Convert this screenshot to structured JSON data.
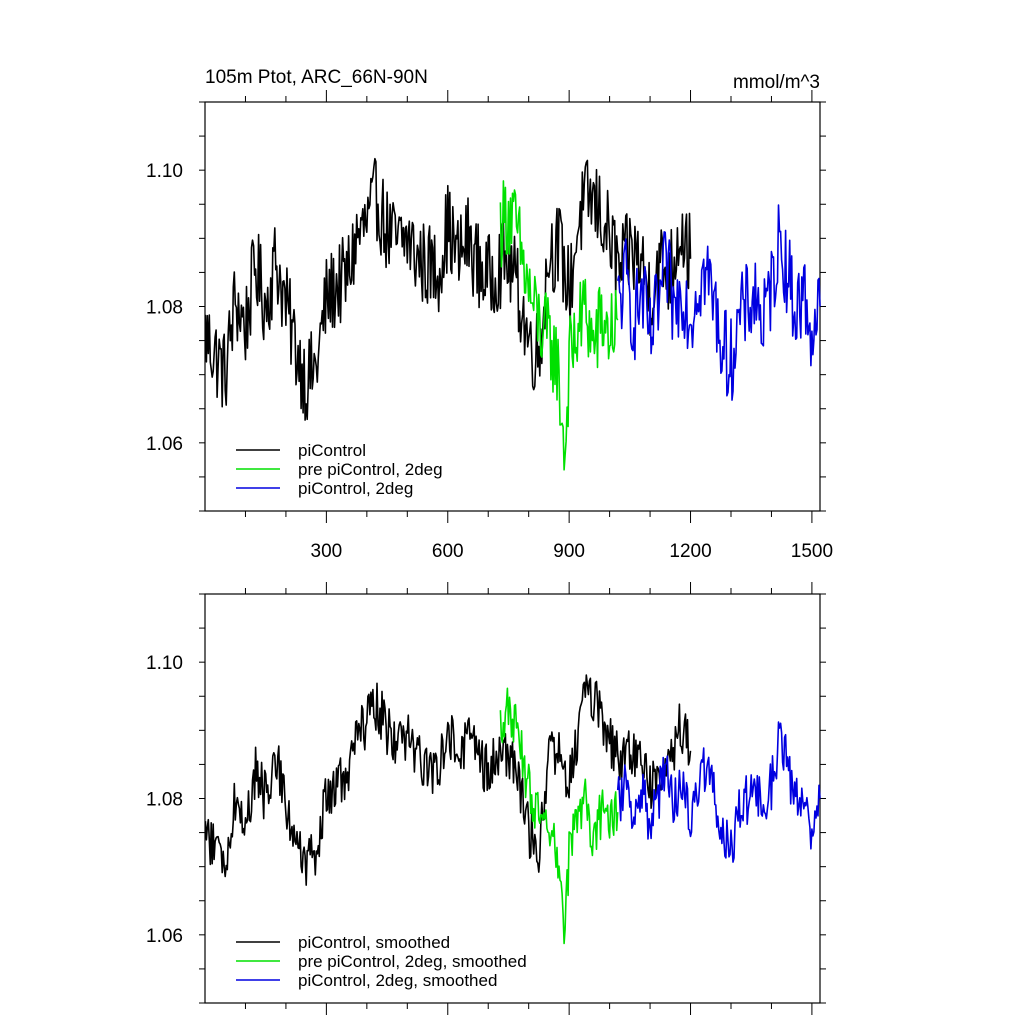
{
  "chart_data": [
    {
      "type": "line",
      "title": "105m Ptot, ARC_66N-90N",
      "units": "mmol/m^3",
      "xlim": [
        0,
        1520
      ],
      "ylim": [
        1.05,
        1.11
      ],
      "x_ticks": [
        300,
        600,
        900,
        1200,
        1500
      ],
      "x_tick_labels": [
        "300",
        "600",
        "900",
        "1200",
        "1500"
      ],
      "y_ticks": [
        1.06,
        1.08,
        1.1
      ],
      "y_tick_labels": [
        "1.06",
        "1.08",
        "1.10"
      ],
      "legend_position": "bottom-left",
      "series": [
        {
          "name": "piControl",
          "color": "#000000",
          "x": [
            1,
            25,
            50,
            75,
            100,
            125,
            150,
            175,
            200,
            225,
            250,
            275,
            300,
            325,
            350,
            375,
            400,
            425,
            450,
            475,
            500,
            525,
            550,
            575,
            600,
            625,
            650,
            675,
            700,
            725,
            750,
            775,
            800,
            825,
            850,
            875,
            900,
            925,
            950,
            975,
            1000,
            1025,
            1050,
            1075,
            1100,
            1125,
            1150,
            1175,
            1200
          ],
          "y": [
            1.076,
            1.073,
            1.07,
            1.081,
            1.077,
            1.086,
            1.08,
            1.087,
            1.08,
            1.074,
            1.069,
            1.071,
            1.081,
            1.083,
            1.084,
            1.09,
            1.092,
            1.096,
            1.091,
            1.089,
            1.09,
            1.087,
            1.086,
            1.085,
            1.092,
            1.087,
            1.09,
            1.086,
            1.084,
            1.086,
            1.087,
            1.082,
            1.075,
            1.073,
            1.088,
            1.089,
            1.082,
            1.093,
            1.096,
            1.094,
            1.09,
            1.085,
            1.088,
            1.087,
            1.082,
            1.086,
            1.085,
            1.092,
            1.087
          ]
        },
        {
          "name": "pre piControl, 2deg",
          "color": "#00e000",
          "x": [
            730,
            750,
            770,
            790,
            810,
            830,
            850,
            870,
            880,
            890,
            900,
            920,
            940,
            960,
            980,
            1000,
            1020
          ],
          "y": [
            1.092,
            1.094,
            1.091,
            1.085,
            1.08,
            1.077,
            1.075,
            1.072,
            1.065,
            1.058,
            1.072,
            1.076,
            1.08,
            1.074,
            1.078,
            1.076,
            1.078
          ]
        },
        {
          "name": "piControl, 2deg",
          "color": "#0000e0",
          "x": [
            1020,
            1040,
            1060,
            1080,
            1100,
            1120,
            1140,
            1160,
            1180,
            1200,
            1220,
            1240,
            1260,
            1280,
            1300,
            1320,
            1340,
            1360,
            1380,
            1400,
            1420,
            1440,
            1460,
            1480,
            1500,
            1520
          ],
          "y": [
            1.08,
            1.084,
            1.078,
            1.082,
            1.075,
            1.08,
            1.086,
            1.079,
            1.083,
            1.078,
            1.084,
            1.085,
            1.08,
            1.074,
            1.072,
            1.078,
            1.08,
            1.082,
            1.077,
            1.083,
            1.09,
            1.085,
            1.079,
            1.082,
            1.076,
            1.08
          ]
        }
      ]
    },
    {
      "type": "line",
      "xlim": [
        0,
        1520
      ],
      "ylim": [
        1.05,
        1.11
      ],
      "x_ticks": [
        300,
        600,
        900,
        1200,
        1500
      ],
      "y_ticks": [
        1.06,
        1.08,
        1.1
      ],
      "y_tick_labels": [
        "1.06",
        "1.08",
        "1.10"
      ],
      "legend_position": "bottom-left",
      "series": [
        {
          "name": "piControl, smoothed",
          "color": "#000000",
          "x": [
            1,
            25,
            50,
            75,
            100,
            125,
            150,
            175,
            200,
            225,
            250,
            275,
            300,
            325,
            350,
            375,
            400,
            425,
            450,
            475,
            500,
            525,
            550,
            575,
            600,
            625,
            650,
            675,
            700,
            725,
            750,
            775,
            800,
            825,
            850,
            875,
            900,
            925,
            950,
            975,
            1000,
            1025,
            1050,
            1075,
            1100,
            1125,
            1150,
            1175,
            1200
          ],
          "y": [
            1.075,
            1.073,
            1.07,
            1.08,
            1.076,
            1.084,
            1.08,
            1.086,
            1.08,
            1.073,
            1.07,
            1.072,
            1.08,
            1.082,
            1.083,
            1.089,
            1.091,
            1.094,
            1.09,
            1.088,
            1.089,
            1.086,
            1.085,
            1.084,
            1.091,
            1.086,
            1.089,
            1.086,
            1.084,
            1.086,
            1.087,
            1.082,
            1.075,
            1.073,
            1.086,
            1.088,
            1.082,
            1.091,
            1.096,
            1.093,
            1.089,
            1.085,
            1.087,
            1.086,
            1.082,
            1.085,
            1.085,
            1.091,
            1.087
          ]
        },
        {
          "name": "pre piControl, 2deg, smoothed",
          "color": "#00e000",
          "x": [
            730,
            750,
            770,
            790,
            810,
            830,
            850,
            870,
            880,
            890,
            900,
            920,
            940,
            960,
            980,
            1000,
            1020
          ],
          "y": [
            1.091,
            1.093,
            1.09,
            1.084,
            1.08,
            1.076,
            1.074,
            1.072,
            1.066,
            1.059,
            1.073,
            1.077,
            1.08,
            1.074,
            1.078,
            1.076,
            1.078
          ]
        },
        {
          "name": "piControl, 2deg, smoothed",
          "color": "#0000e0",
          "x": [
            1020,
            1040,
            1060,
            1080,
            1100,
            1120,
            1140,
            1160,
            1180,
            1200,
            1220,
            1240,
            1260,
            1280,
            1300,
            1320,
            1340,
            1360,
            1380,
            1400,
            1420,
            1440,
            1460,
            1480,
            1500,
            1520
          ],
          "y": [
            1.079,
            1.083,
            1.078,
            1.081,
            1.076,
            1.08,
            1.085,
            1.079,
            1.082,
            1.078,
            1.083,
            1.085,
            1.08,
            1.075,
            1.072,
            1.078,
            1.08,
            1.082,
            1.077,
            1.082,
            1.089,
            1.085,
            1.079,
            1.082,
            1.075,
            1.08
          ]
        }
      ]
    }
  ]
}
